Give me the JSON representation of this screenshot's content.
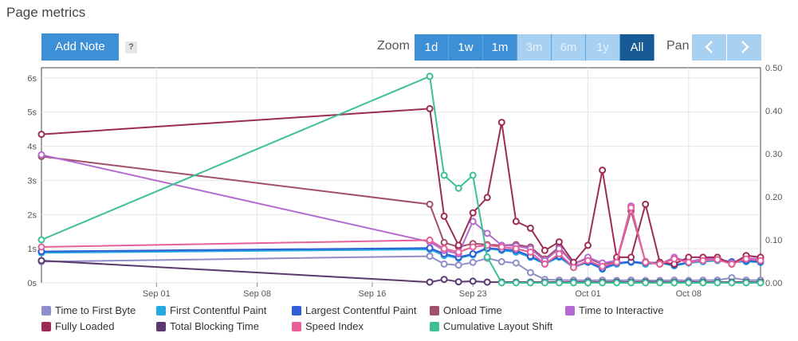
{
  "page": {
    "title": "Page metrics"
  },
  "toolbar": {
    "add_note_label": "Add Note",
    "help_label": "?",
    "zoom_label": "Zoom",
    "zoom_options": [
      {
        "label": "1d",
        "state": "enabled"
      },
      {
        "label": "1w",
        "state": "enabled"
      },
      {
        "label": "1m",
        "state": "enabled"
      },
      {
        "label": "3m",
        "state": "disabled"
      },
      {
        "label": "6m",
        "state": "disabled"
      },
      {
        "label": "1y",
        "state": "disabled"
      },
      {
        "label": "All",
        "state": "active"
      }
    ],
    "pan_label": "Pan",
    "pan_left_icon": "chevron-left-icon",
    "pan_right_icon": "chevron-right-icon"
  },
  "colors": {
    "accent": "#3d8fd6",
    "accent_disabled": "#a8d0f0",
    "accent_active": "#175a96"
  },
  "chart_data": {
    "type": "line",
    "x_type": "date",
    "x_ticks": [
      "Sep 01",
      "Sep 08",
      "Sep 16",
      "Sep 23",
      "Oct 01",
      "Oct 08"
    ],
    "x_tick_dates": [
      "2023-09-01",
      "2023-09-08",
      "2023-09-16",
      "2023-09-23",
      "2023-10-01",
      "2023-10-08"
    ],
    "x_range": [
      "2023-08-24",
      "2023-10-13"
    ],
    "y_left": {
      "ticks": [
        "0s",
        "1s",
        "2s",
        "3s",
        "4s",
        "5s",
        "6s"
      ],
      "range": [
        0,
        6.3
      ]
    },
    "y_right": {
      "ticks": [
        "0.00",
        "0.10",
        "0.20",
        "0.30",
        "0.40",
        "0.50"
      ],
      "range": [
        0,
        0.5
      ]
    },
    "grid": true,
    "x": [
      "2023-08-24",
      "2023-09-20",
      "2023-09-21",
      "2023-09-22",
      "2023-09-23",
      "2023-09-24",
      "2023-09-25",
      "2023-09-26",
      "2023-09-27",
      "2023-09-28",
      "2023-09-29",
      "2023-09-30",
      "2023-10-01",
      "2023-10-02",
      "2023-10-03",
      "2023-10-04",
      "2023-10-05",
      "2023-10-06",
      "2023-10-07",
      "2023-10-08",
      "2023-10-09",
      "2023-10-10",
      "2023-10-11",
      "2023-10-12",
      "2023-10-13"
    ],
    "series": [
      {
        "name": "Time to First Byte",
        "color": "#8e8ec8",
        "axis": "left",
        "values": [
          0.62,
          0.78,
          0.55,
          0.52,
          0.6,
          0.72,
          0.62,
          0.58,
          0.3,
          0.1,
          0.08,
          0.08,
          0.07,
          0.08,
          0.07,
          0.08,
          0.07,
          0.07,
          0.08,
          0.07,
          0.08,
          0.08,
          0.15,
          0.08,
          0.08
        ]
      },
      {
        "name": "First Contentful Paint",
        "color": "#26a9e0",
        "axis": "left",
        "values": [
          0.88,
          0.98,
          0.8,
          0.72,
          0.82,
          1.0,
          0.95,
          0.9,
          0.75,
          0.55,
          0.75,
          0.45,
          0.6,
          0.4,
          0.55,
          0.6,
          0.55,
          0.58,
          0.5,
          0.58,
          0.62,
          0.65,
          0.6,
          0.62,
          0.6
        ]
      },
      {
        "name": "Largest Contentful Paint",
        "color": "#2f5fd4",
        "axis": "left",
        "values": [
          0.92,
          1.02,
          0.85,
          0.75,
          0.85,
          1.02,
          0.98,
          0.95,
          0.78,
          0.58,
          0.78,
          0.48,
          0.62,
          0.42,
          0.58,
          0.62,
          0.58,
          0.6,
          0.52,
          0.6,
          0.65,
          0.68,
          0.62,
          0.65,
          0.62
        ]
      },
      {
        "name": "Onload Time",
        "color": "#a05068",
        "axis": "left",
        "values": [
          3.7,
          2.3,
          1.18,
          1.05,
          1.15,
          1.12,
          1.1,
          1.12,
          1.05,
          0.7,
          1.05,
          0.55,
          0.72,
          0.55,
          0.62,
          2.1,
          0.62,
          0.55,
          0.7,
          0.62,
          0.68,
          0.7,
          0.55,
          0.72,
          0.68
        ]
      },
      {
        "name": "Time to Interactive",
        "color": "#b46ad0",
        "axis": "left",
        "values": [
          3.75,
          1.2,
          0.95,
          0.85,
          1.8,
          1.45,
          1.1,
          1.08,
          1.0,
          0.65,
          1.0,
          0.55,
          0.75,
          0.58,
          0.65,
          2.25,
          0.6,
          0.55,
          0.75,
          0.62,
          0.7,
          0.72,
          0.58,
          0.72,
          0.7
        ]
      },
      {
        "name": "Fully Loaded",
        "color": "#9c2c55",
        "axis": "left",
        "values": [
          4.35,
          5.1,
          1.95,
          1.1,
          2.05,
          2.5,
          4.7,
          1.8,
          1.6,
          0.95,
          1.2,
          0.6,
          1.1,
          3.3,
          0.75,
          0.75,
          2.3,
          0.6,
          0.55,
          0.75,
          0.75,
          0.75,
          0.55,
          0.8,
          0.75
        ]
      },
      {
        "name": "Total Blocking Time",
        "color": "#5a3a6e",
        "axis": "left",
        "values": [
          0.65,
          0.02,
          0.1,
          0.03,
          0.05,
          0.02,
          0.02,
          0.02,
          0.02,
          0.02,
          0.02,
          0.02,
          0.02,
          0.02,
          0.02,
          0.02,
          0.02,
          0.02,
          0.02,
          0.02,
          0.02,
          0.02,
          0.02,
          0.02,
          0.02
        ]
      },
      {
        "name": "Speed Index",
        "color": "#e8609a",
        "axis": "left",
        "values": [
          1.05,
          1.25,
          1.0,
          0.9,
          1.05,
          1.1,
          1.05,
          1.0,
          0.9,
          0.55,
          0.85,
          0.45,
          0.65,
          0.48,
          0.6,
          2.2,
          0.6,
          0.55,
          0.7,
          0.6,
          0.65,
          0.68,
          0.55,
          0.7,
          0.65
        ]
      },
      {
        "name": "Cumulative Layout Shift",
        "color": "#3ebf96",
        "axis": "right",
        "values": [
          0.1,
          0.48,
          0.25,
          0.22,
          0.25,
          0.06,
          0.0,
          0.0,
          0.0,
          0.0,
          0.0,
          0.0,
          0.0,
          0.0,
          0.0,
          0.0,
          0.0,
          0.0,
          0.0,
          0.0,
          0.0,
          0.0,
          0.0,
          0.0,
          0.0
        ]
      }
    ]
  }
}
